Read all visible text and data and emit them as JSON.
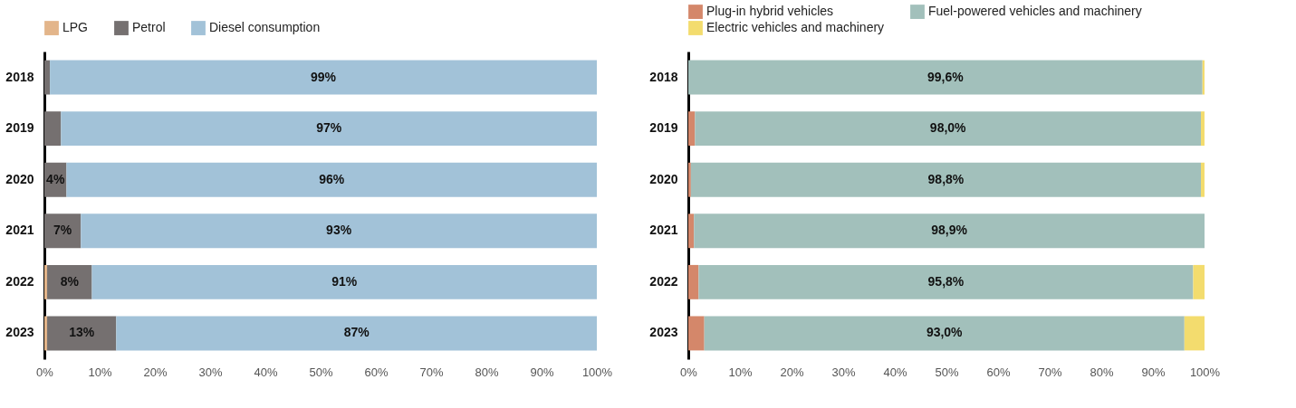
{
  "chart_data": [
    {
      "type": "bar",
      "orientation": "horizontal",
      "stacked": true,
      "legend": "top",
      "categories": [
        "2018",
        "2019",
        "2020",
        "2021",
        "2022",
        "2023"
      ],
      "series": [
        {
          "name": "LPG",
          "color": "#e3b58a",
          "values": [
            0,
            0,
            0,
            0,
            0.5,
            0.5
          ],
          "value_labels": [
            null,
            null,
            null,
            null,
            null,
            null
          ]
        },
        {
          "name": "Petrol",
          "color": "#757070",
          "values": [
            1,
            3,
            4,
            6.6,
            8.1,
            12.5
          ],
          "value_labels": [
            null,
            null,
            "4%",
            "7%",
            "8%",
            "13%"
          ]
        },
        {
          "name": "Diesel consumption",
          "color": "#a2c2d8",
          "values": [
            99,
            97,
            96,
            93.4,
            91.4,
            87
          ],
          "value_labels": [
            "99%",
            "97%",
            "96%",
            "93%",
            "91%",
            "87%"
          ]
        }
      ],
      "xlim": [
        0,
        100
      ],
      "xticks": [
        {
          "value": 0,
          "label": "0%"
        },
        {
          "value": 10,
          "label": "10%"
        },
        {
          "value": 20,
          "label": "20%"
        },
        {
          "value": 30,
          "label": "30%"
        },
        {
          "value": 40,
          "label": "40%"
        },
        {
          "value": 50,
          "label": "50%"
        },
        {
          "value": 60,
          "label": "60%"
        },
        {
          "value": 70,
          "label": "70%"
        },
        {
          "value": 80,
          "label": "80%"
        },
        {
          "value": 90,
          "label": "90%"
        },
        {
          "value": 100,
          "label": "100%"
        }
      ]
    },
    {
      "type": "bar",
      "orientation": "horizontal",
      "stacked": true,
      "legend": "top left",
      "categories": [
        "2018",
        "2019",
        "2020",
        "2021",
        "2022",
        "2023"
      ],
      "series": [
        {
          "name": "Plug-in hybrid vehicles",
          "color": "#d4876a",
          "values": [
            0,
            1.3,
            0.5,
            1.1,
            2.0,
            3.1
          ],
          "value_labels": [
            null,
            null,
            null,
            null,
            null,
            null
          ]
        },
        {
          "name": "Fuel-powered vehicles and machinery",
          "color": "#a2c0bb",
          "values": [
            99.6,
            98.0,
            98.8,
            98.9,
            95.8,
            93.0
          ],
          "value_labels": [
            "99,6%",
            "98,0%",
            "98,8%",
            "98,9%",
            "95,8%",
            "93,0%"
          ]
        },
        {
          "name": "Electric vehicles and machinery",
          "color": "#f3dc6e",
          "values": [
            0.4,
            0.7,
            0.7,
            0,
            2.2,
            3.9
          ],
          "value_labels": [
            null,
            null,
            null,
            null,
            null,
            null
          ]
        }
      ],
      "xlim": [
        0,
        100
      ],
      "xticks": [
        {
          "value": 0,
          "label": "0%"
        },
        {
          "value": 10,
          "label": "10%"
        },
        {
          "value": 20,
          "label": "20%"
        },
        {
          "value": 30,
          "label": "30%"
        },
        {
          "value": 40,
          "label": "40%"
        },
        {
          "value": 50,
          "label": "50%"
        },
        {
          "value": 60,
          "label": "60%"
        },
        {
          "value": 70,
          "label": "70%"
        },
        {
          "value": 80,
          "label": "80%"
        },
        {
          "value": 90,
          "label": "90%"
        },
        {
          "value": 100,
          "label": "100%"
        }
      ]
    }
  ]
}
